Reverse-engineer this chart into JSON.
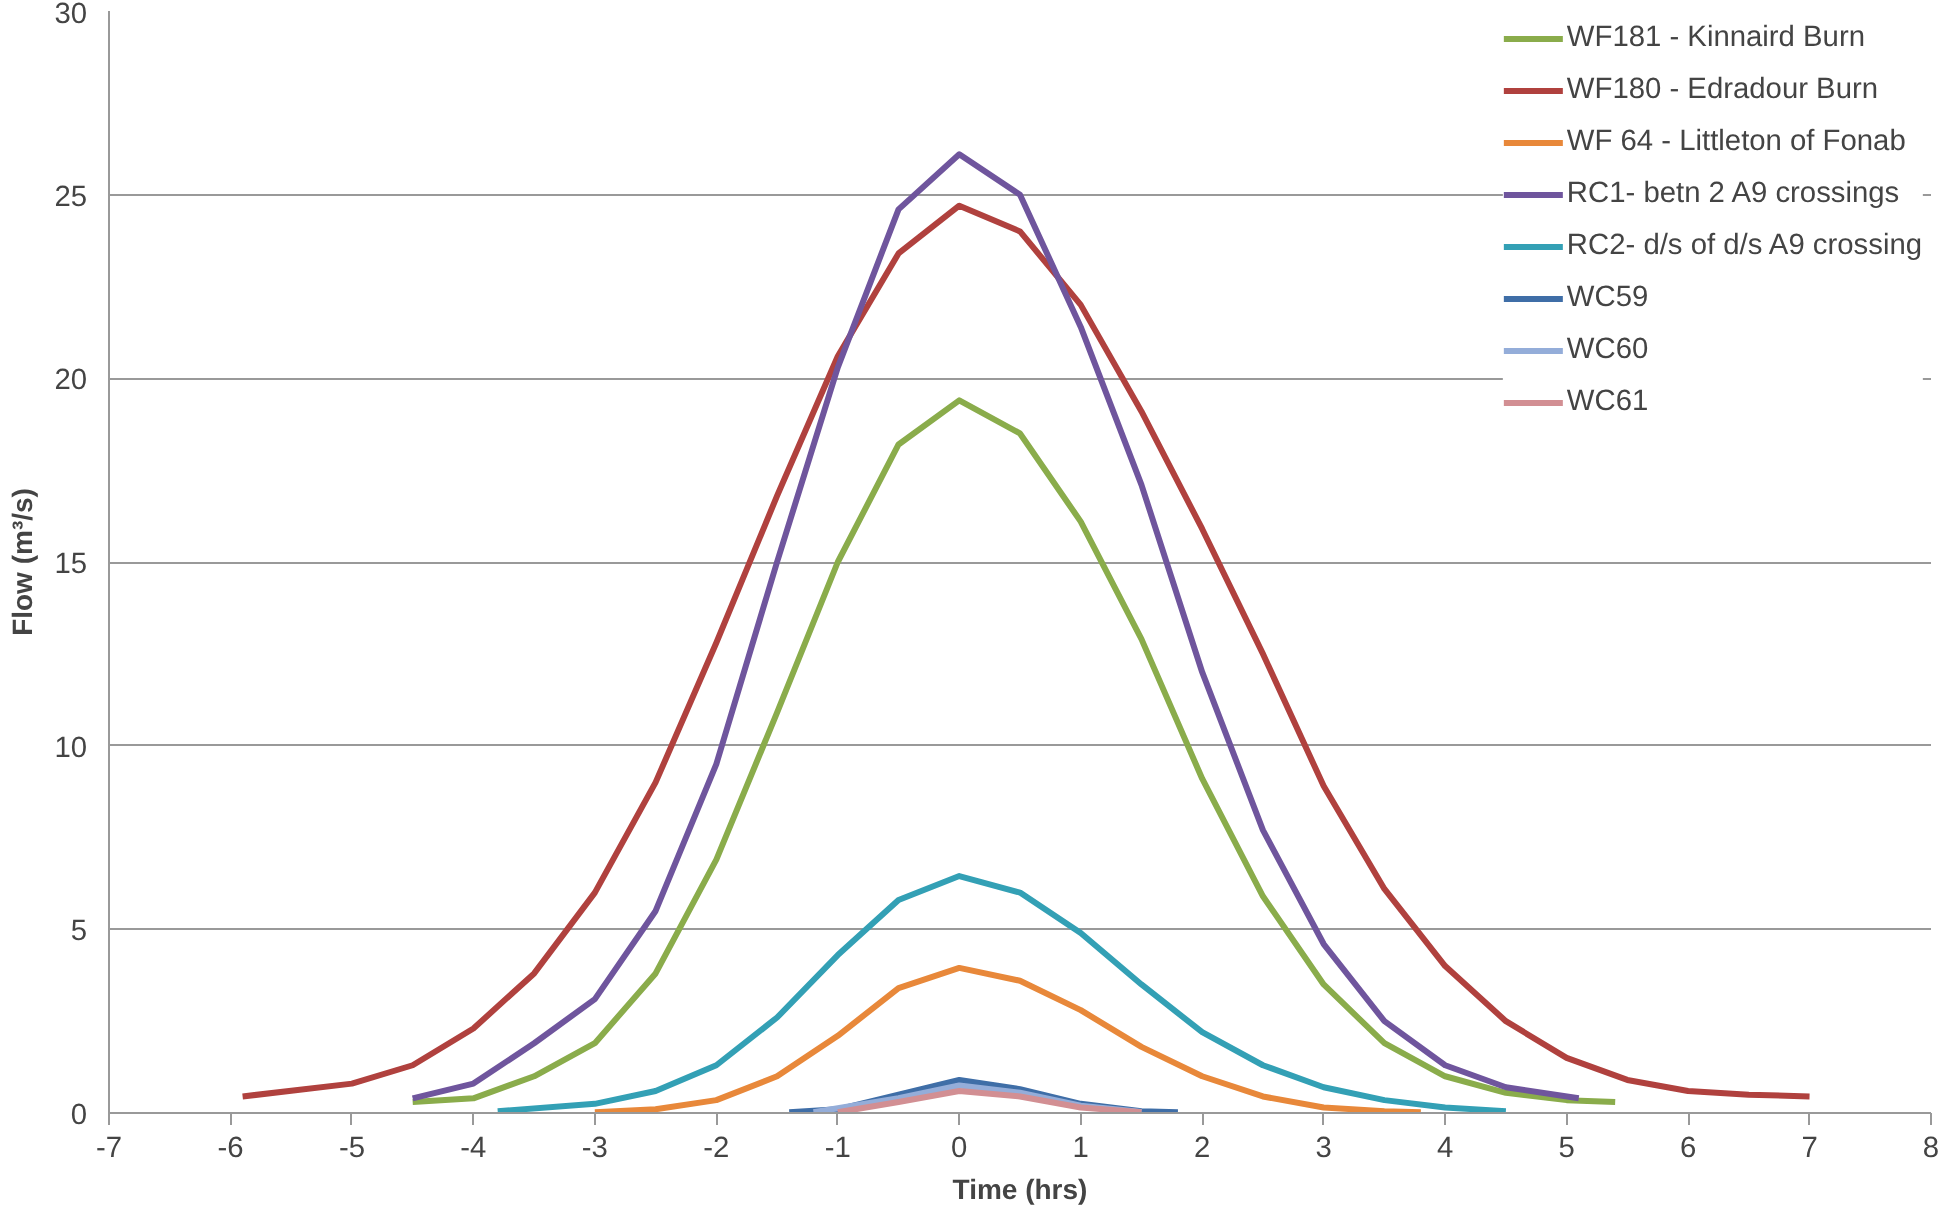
{
  "chart_data": {
    "type": "line",
    "xlabel": "Time (hrs)",
    "ylabel": "Flow (m³/s)",
    "xlim": [
      -7,
      8
    ],
    "xticks": [
      -7,
      -6,
      -5,
      -4,
      -3,
      -2,
      -1,
      0,
      1,
      2,
      3,
      4,
      5,
      6,
      7,
      8
    ],
    "ylim": [
      0,
      30
    ],
    "yticks": [
      0,
      5,
      10,
      15,
      20,
      25,
      30
    ],
    "grid": "y",
    "legend": "top right",
    "line_style": "solid",
    "series": [
      {
        "name": "WF181 - Kinnaird Burn",
        "color": "#8aac4b",
        "x": [
          -4.5,
          -4,
          -3.5,
          -3,
          -2.5,
          -2,
          -1.5,
          -1,
          -0.5,
          0,
          0.5,
          1,
          1.5,
          2,
          2.5,
          3,
          3.5,
          4,
          4.5,
          5,
          5.4
        ],
        "values": [
          0.3,
          0.4,
          1.0,
          1.9,
          3.8,
          6.9,
          10.9,
          15.0,
          18.2,
          19.4,
          18.5,
          16.1,
          12.9,
          9.1,
          5.9,
          3.5,
          1.9,
          1.0,
          0.55,
          0.35,
          0.3
        ]
      },
      {
        "name": "WF180 - Edradour Burn",
        "color": "#b0413e",
        "x": [
          -5.9,
          -5,
          -4.5,
          -4,
          -3.5,
          -3,
          -2.5,
          -2,
          -1.5,
          -1,
          -0.5,
          0,
          0.5,
          1,
          1.5,
          2,
          2.5,
          3,
          3.5,
          4,
          4.5,
          5,
          5.5,
          6,
          6.5,
          7
        ],
        "values": [
          0.45,
          0.8,
          1.3,
          2.3,
          3.8,
          6.0,
          9.0,
          12.8,
          16.8,
          20.6,
          23.4,
          24.7,
          24.0,
          22.0,
          19.1,
          15.9,
          12.5,
          8.9,
          6.1,
          4.0,
          2.5,
          1.5,
          0.9,
          0.6,
          0.5,
          0.45
        ]
      },
      {
        "name": "WF 64 - Littleton of Fonab",
        "color": "#e8883a",
        "x": [
          -3,
          -2.5,
          -2,
          -1.5,
          -1,
          -0.5,
          0,
          0.5,
          1,
          1.5,
          2,
          2.5,
          3,
          3.5,
          3.8
        ],
        "values": [
          0.02,
          0.1,
          0.35,
          1.0,
          2.1,
          3.4,
          3.95,
          3.6,
          2.8,
          1.8,
          1.0,
          0.45,
          0.15,
          0.05,
          0.02
        ]
      },
      {
        "name": "RC1- betn 2 A9 crossings",
        "color": "#6f559d",
        "x": [
          -4.5,
          -4,
          -3.5,
          -3,
          -2.5,
          -2,
          -1.5,
          -1,
          -0.5,
          0,
          0.5,
          1,
          1.5,
          2,
          2.5,
          3,
          3.5,
          4,
          4.5,
          5.1
        ],
        "values": [
          0.4,
          0.8,
          1.9,
          3.1,
          5.5,
          9.5,
          15.0,
          20.3,
          24.6,
          26.1,
          25.0,
          21.4,
          17.1,
          12.0,
          7.7,
          4.6,
          2.5,
          1.3,
          0.7,
          0.4
        ]
      },
      {
        "name": "RC2- d/s of d/s A9 crossing",
        "color": "#33a0b5",
        "x": [
          -3.8,
          -3,
          -2.5,
          -2,
          -1.5,
          -1,
          -0.5,
          0,
          0.5,
          1,
          1.5,
          2,
          2.5,
          3,
          3.5,
          4,
          4.5
        ],
        "values": [
          0.05,
          0.25,
          0.6,
          1.3,
          2.6,
          4.3,
          5.8,
          6.45,
          6.0,
          4.9,
          3.5,
          2.2,
          1.3,
          0.7,
          0.35,
          0.15,
          0.05
        ]
      },
      {
        "name": "WC59",
        "color": "#3f6ea7",
        "x": [
          -1.4,
          -1,
          -0.5,
          0,
          0.5,
          1,
          1.5,
          1.8
        ],
        "values": [
          0.02,
          0.1,
          0.5,
          0.9,
          0.65,
          0.25,
          0.05,
          0.02
        ]
      },
      {
        "name": "WC60",
        "color": "#94add9",
        "x": [
          -1.2,
          -0.5,
          0,
          0.5,
          1,
          1.5
        ],
        "values": [
          0.02,
          0.4,
          0.75,
          0.55,
          0.2,
          0.03
        ]
      },
      {
        "name": "WC61",
        "color": "#d28f93",
        "x": [
          -1,
          -0.5,
          0,
          0.5,
          1,
          1.5
        ],
        "values": [
          0.02,
          0.3,
          0.6,
          0.45,
          0.15,
          0.02
        ]
      }
    ]
  }
}
